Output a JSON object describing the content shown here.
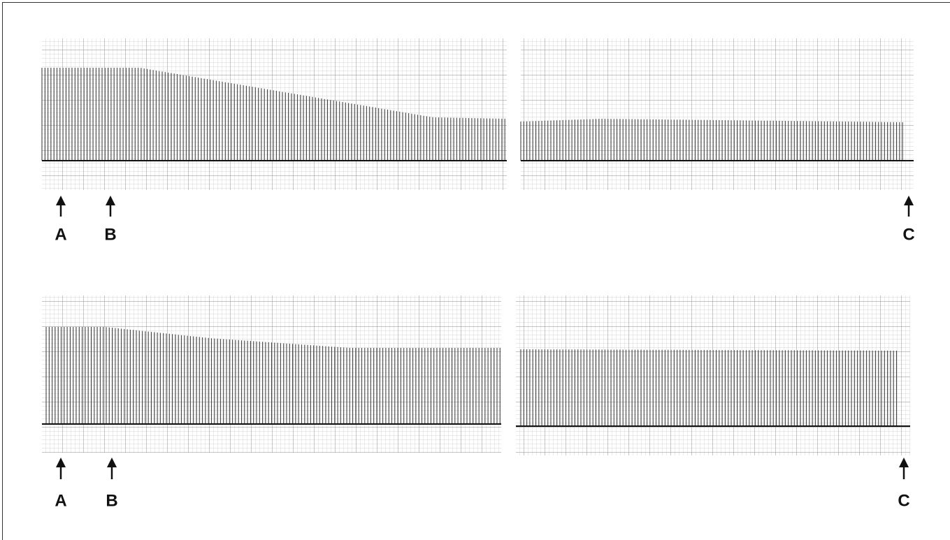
{
  "figure": {
    "rows": [
      {
        "markers": [
          "A",
          "B",
          "C"
        ]
      },
      {
        "markers": [
          "A",
          "B",
          "C"
        ]
      }
    ]
  }
}
